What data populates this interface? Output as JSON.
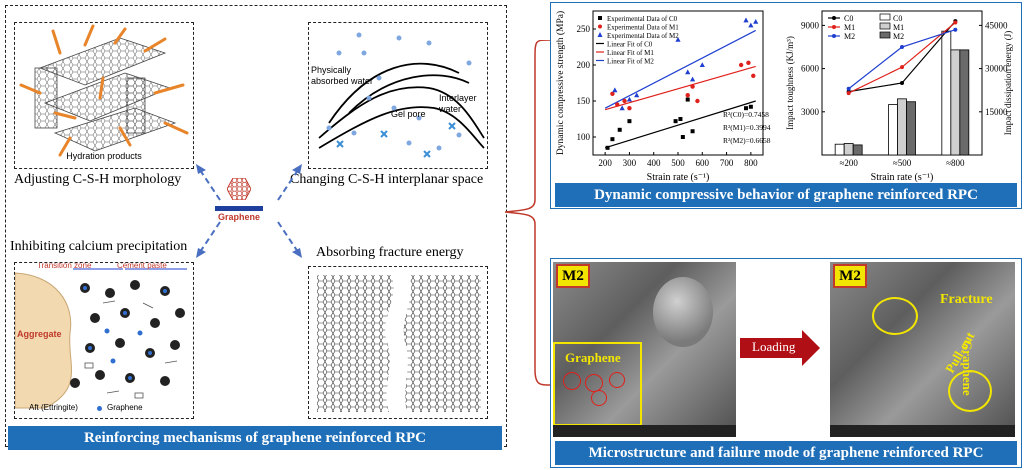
{
  "left_panel": {
    "banner": "Reinforcing mechanisms of graphene reinforced RPC",
    "q1": {
      "inner_label": "Hydration products",
      "title": "Adjusting C-S-H morphology"
    },
    "q2": {
      "label_physical": "Physically absorbed water",
      "label_gel": "Gel pore",
      "label_interlayer": "Interlayer water",
      "title": "Changing C-S-H interplanar space"
    },
    "center": {
      "label": "Graphene"
    },
    "q3": {
      "title": "Inhibiting calcium precipitation",
      "transition_zone": "Transition zone",
      "cement_paste": "Cement paste",
      "aggregate": "Aggregate",
      "legend_aft": "Aft (Ettringite)",
      "legend_graphene": "Graphene"
    },
    "q4": {
      "title": "Absorbing fracture energy"
    }
  },
  "right_top": {
    "banner": "Dynamic compressive behavior of graphene reinforced RPC",
    "chart1": {
      "ylabel": "Dynamic compressive strength (MPa)",
      "xlabel": "Strain rate (s⁻¹)",
      "legend": [
        "Experimental Data of C0",
        "Experimental Data of M1",
        "Experimental Data of M2",
        "Linear Fit of C0",
        "Linear Fit of M1",
        "Linear Fit of M2"
      ],
      "r2": [
        "R²(C0)=0.7458",
        "R²(M1)=0.3994",
        "R²(M2)=0.6658"
      ]
    },
    "chart2": {
      "ylabel_left": "Impact toughness (KJ/m³)",
      "ylabel_right": "Impact dissipation energy (J)",
      "xlabel": "Strain rate (s⁻¹)",
      "legend": [
        "C0",
        "M1",
        "M2"
      ]
    }
  },
  "right_bottom": {
    "banner": "Microstructure and failure mode of graphene reinforced RPC",
    "left_tag": "M2",
    "right_tag": "M2",
    "graphene_label": "Graphene",
    "loading_label": "Loading",
    "fracture_label": "Fracture",
    "graphene_label2": "Graphene",
    "pullout_label": "Pull-out"
  },
  "chart_data": [
    {
      "type": "scatter",
      "title": "",
      "xlabel": "Strain rate (s⁻¹)",
      "ylabel": "Dynamic compressive strength (MPa)",
      "xlim": [
        150,
        850
      ],
      "ylim": [
        75,
        275
      ],
      "xticks": [
        200,
        300,
        400,
        500,
        600,
        700,
        800
      ],
      "yticks": [
        100,
        150,
        200,
        250
      ],
      "legend_position": "top-left",
      "series": [
        {
          "name": "Experimental Data of C0",
          "color": "#000000",
          "marker": "square",
          "points": [
            [
              210,
              85
            ],
            [
              230,
              97
            ],
            [
              260,
              110
            ],
            [
              300,
              122
            ],
            [
              490,
              122
            ],
            [
              510,
              125
            ],
            [
              520,
              100
            ],
            [
              540,
              152
            ],
            [
              560,
              108
            ],
            [
              780,
              140
            ],
            [
              800,
              142
            ]
          ]
        },
        {
          "name": "Experimental Data of M1",
          "color": "#e0201b",
          "marker": "circle",
          "points": [
            [
              230,
              160
            ],
            [
              250,
              145
            ],
            [
              280,
              150
            ],
            [
              300,
              140
            ],
            [
              540,
              158
            ],
            [
              560,
              170
            ],
            [
              580,
              150
            ],
            [
              760,
              200
            ],
            [
              790,
              203
            ],
            [
              810,
              185
            ]
          ]
        },
        {
          "name": "Experimental Data of M2",
          "color": "#1f3fcf",
          "marker": "triangle",
          "points": [
            [
              240,
              165
            ],
            [
              270,
              140
            ],
            [
              300,
              152
            ],
            [
              330,
              158
            ],
            [
              500,
              235
            ],
            [
              540,
              190
            ],
            [
              560,
              180
            ],
            [
              600,
              200
            ],
            [
              780,
              262
            ],
            [
              800,
              255
            ],
            [
              820,
              260
            ]
          ]
        }
      ],
      "fits": [
        {
          "name": "Linear Fit of C0",
          "color": "#000000",
          "x": [
            200,
            820
          ],
          "y": [
            85,
            150
          ]
        },
        {
          "name": "Linear Fit of M1",
          "color": "#e0201b",
          "x": [
            200,
            820
          ],
          "y": [
            138,
            198
          ]
        },
        {
          "name": "Linear Fit of M2",
          "color": "#1f3fcf",
          "x": [
            200,
            820
          ],
          "y": [
            140,
            248
          ]
        }
      ],
      "annotations": [
        "R²(C0)=0.7458",
        "R²(M1)=0.3994",
        "R²(M2)=0.6658"
      ]
    },
    {
      "type": "bar",
      "title": "",
      "xlabel": "Strain rate (s⁻¹)",
      "ylabel": "Impact toughness (KJ/m³)",
      "ylabel_right": "Impact dissipation energy (J)",
      "categories": [
        "≈200",
        "≈500",
        "≈800"
      ],
      "ylim": [
        0,
        10000
      ],
      "yticks": [
        3000,
        6000,
        9000
      ],
      "ylim_right": [
        0,
        50000
      ],
      "yticks_right": [
        15000,
        30000,
        45000
      ],
      "legend_position": "top-left",
      "bar_series": [
        {
          "name": "C0",
          "values": [
            750,
            3500,
            8600
          ]
        },
        {
          "name": "M1",
          "values": [
            800,
            3900,
            7300
          ]
        },
        {
          "name": "M2",
          "values": [
            700,
            3700,
            7300
          ]
        }
      ],
      "line_series": [
        {
          "name": "C0",
          "color": "#000000",
          "values": [
            4400,
            5000,
            9300
          ]
        },
        {
          "name": "M1",
          "color": "#e0201b",
          "values": [
            4300,
            6100,
            9200
          ]
        },
        {
          "name": "M2",
          "color": "#1f3fcf",
          "values": [
            4600,
            7500,
            8700
          ]
        }
      ]
    }
  ]
}
